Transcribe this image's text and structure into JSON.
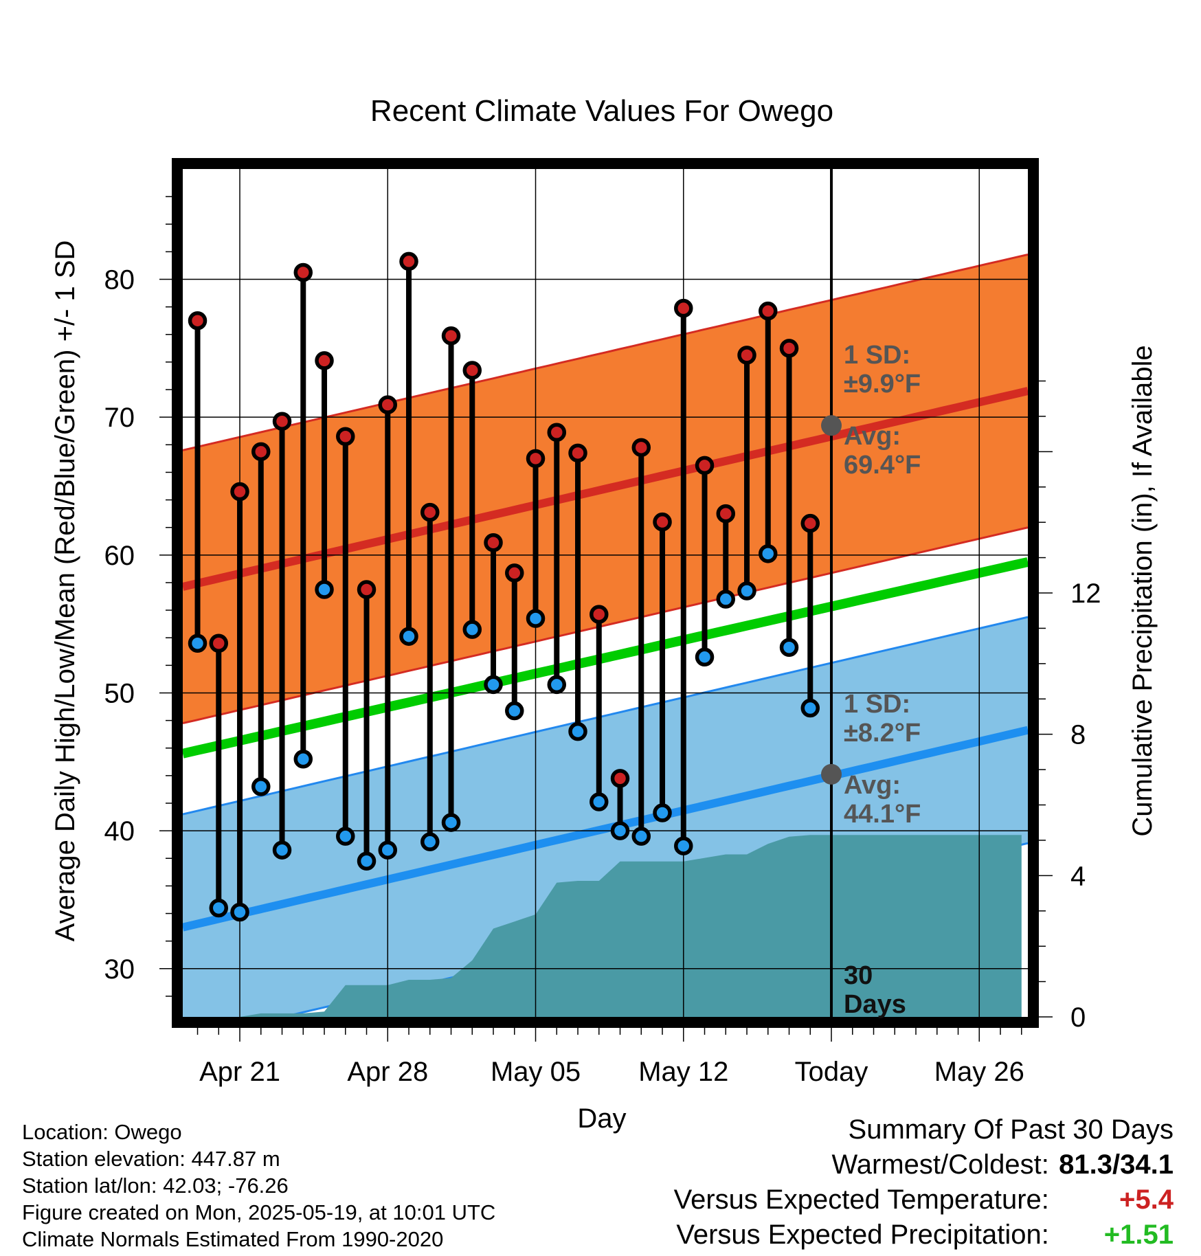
{
  "chart_data": {
    "type": "line",
    "title": "Recent Climate Values For Owego",
    "xlabel": "Day",
    "ylabel": "Average Daily High/Low/Mean (Red/Blue/Green) +/- 1 SD",
    "y2label": "Cumulative Precipitation (in), If Available",
    "x_tick_labels": [
      "Apr 21",
      "Apr 28",
      "May 05",
      "May 12",
      "Today",
      "May 26"
    ],
    "x_tick_days": [
      2,
      9,
      16,
      23,
      30,
      37
    ],
    "xlim": [
      -0.7,
      39.3
    ],
    "ylim": [
      26.5,
      88
    ],
    "y_ticks": [
      30,
      40,
      50,
      60,
      70,
      80
    ],
    "y2lim": [
      0,
      24
    ],
    "y2_ticks": [
      0,
      4,
      8,
      12
    ],
    "today_day": 30,
    "today_label": "30 Days",
    "normals": {
      "high_mean": {
        "start": 57.7,
        "end": 71.9,
        "sd": 9.9
      },
      "low_mean": {
        "start": 33.0,
        "end": 47.3,
        "sd": 8.2
      },
      "daily_mean": {
        "start": 45.6,
        "end": 59.5
      }
    },
    "annotations": {
      "high_sd": "1 SD:",
      "high_sd_value": "±9.9°F",
      "high_avg": "Avg:",
      "high_avg_value": "69.4°F",
      "low_sd": "1 SD:",
      "low_sd_value": "±8.2°F",
      "low_avg": "Avg:",
      "low_avg_value": "44.1°F"
    },
    "today_high_avg": 69.4,
    "today_low_avg": 44.1,
    "series": [
      {
        "name": "High",
        "color": "#cc2222",
        "days": [
          0,
          1,
          2,
          3,
          4,
          5,
          6,
          7,
          8,
          9,
          10,
          11,
          12,
          13,
          14,
          15,
          16,
          17,
          18,
          19,
          20,
          21,
          22,
          23,
          24,
          25,
          26,
          27,
          28,
          29
        ],
        "values": [
          77.0,
          53.6,
          64.6,
          67.5,
          69.7,
          80.5,
          74.1,
          68.6,
          57.5,
          70.9,
          81.3,
          63.1,
          75.9,
          73.4,
          60.9,
          58.7,
          67.0,
          68.9,
          67.4,
          55.7,
          43.8,
          67.8,
          62.4,
          77.9,
          66.5,
          63.0,
          74.5,
          77.7,
          75.0,
          62.3
        ]
      },
      {
        "name": "Low",
        "color": "#2299ee",
        "days": [
          0,
          1,
          2,
          3,
          4,
          5,
          6,
          7,
          8,
          9,
          10,
          11,
          12,
          13,
          14,
          15,
          16,
          17,
          18,
          19,
          20,
          21,
          22,
          23,
          24,
          25,
          26,
          27,
          28,
          29
        ],
        "values": [
          53.6,
          34.4,
          34.1,
          43.2,
          38.6,
          45.2,
          57.5,
          39.6,
          37.8,
          38.6,
          54.1,
          39.2,
          40.6,
          54.6,
          50.6,
          48.7,
          55.4,
          50.6,
          47.2,
          42.1,
          40.0,
          39.6,
          41.3,
          38.9,
          52.6,
          56.8,
          57.4,
          60.1,
          53.3,
          48.9
        ]
      },
      {
        "name": "Cumulative Precipitation",
        "days": [
          0,
          1,
          2,
          3,
          4,
          5,
          6,
          7,
          8,
          9,
          10,
          11,
          12,
          13,
          14,
          15,
          16,
          17,
          18,
          19,
          20,
          21,
          22,
          23,
          24,
          25,
          26,
          27,
          28,
          29,
          30,
          39
        ],
        "values": [
          0,
          0,
          0,
          0.1,
          0.1,
          0.1,
          0.15,
          0.9,
          0.9,
          0.9,
          1.05,
          1.05,
          1.1,
          1.6,
          2.5,
          2.7,
          2.9,
          3.8,
          3.85,
          3.85,
          4.4,
          4.4,
          4.4,
          4.4,
          4.5,
          4.6,
          4.6,
          4.9,
          5.1,
          5.15,
          5.15,
          5.15
        ]
      }
    ]
  },
  "info": {
    "location": "Location: Owego",
    "elevation": "Station elevation: 447.87 m",
    "latlon": "Station lat/lon: 42.03; -76.26",
    "created": "Figure created on Mon, 2025-05-19, at 10:01 UTC",
    "normals": "Climate Normals Estimated From 1990-2020"
  },
  "summary": {
    "heading": "Summary Of Past 30 Days",
    "warmest_label": "Warmest/Coldest:",
    "warmest_value": "81.3/34.1",
    "temp_label": "Versus Expected Temperature:",
    "temp_value": "+5.4",
    "temp_color": "#cc2222",
    "precip_label": "Versus Expected Precipitation:",
    "precip_value": "+1.51",
    "precip_color": "#22bb22"
  }
}
